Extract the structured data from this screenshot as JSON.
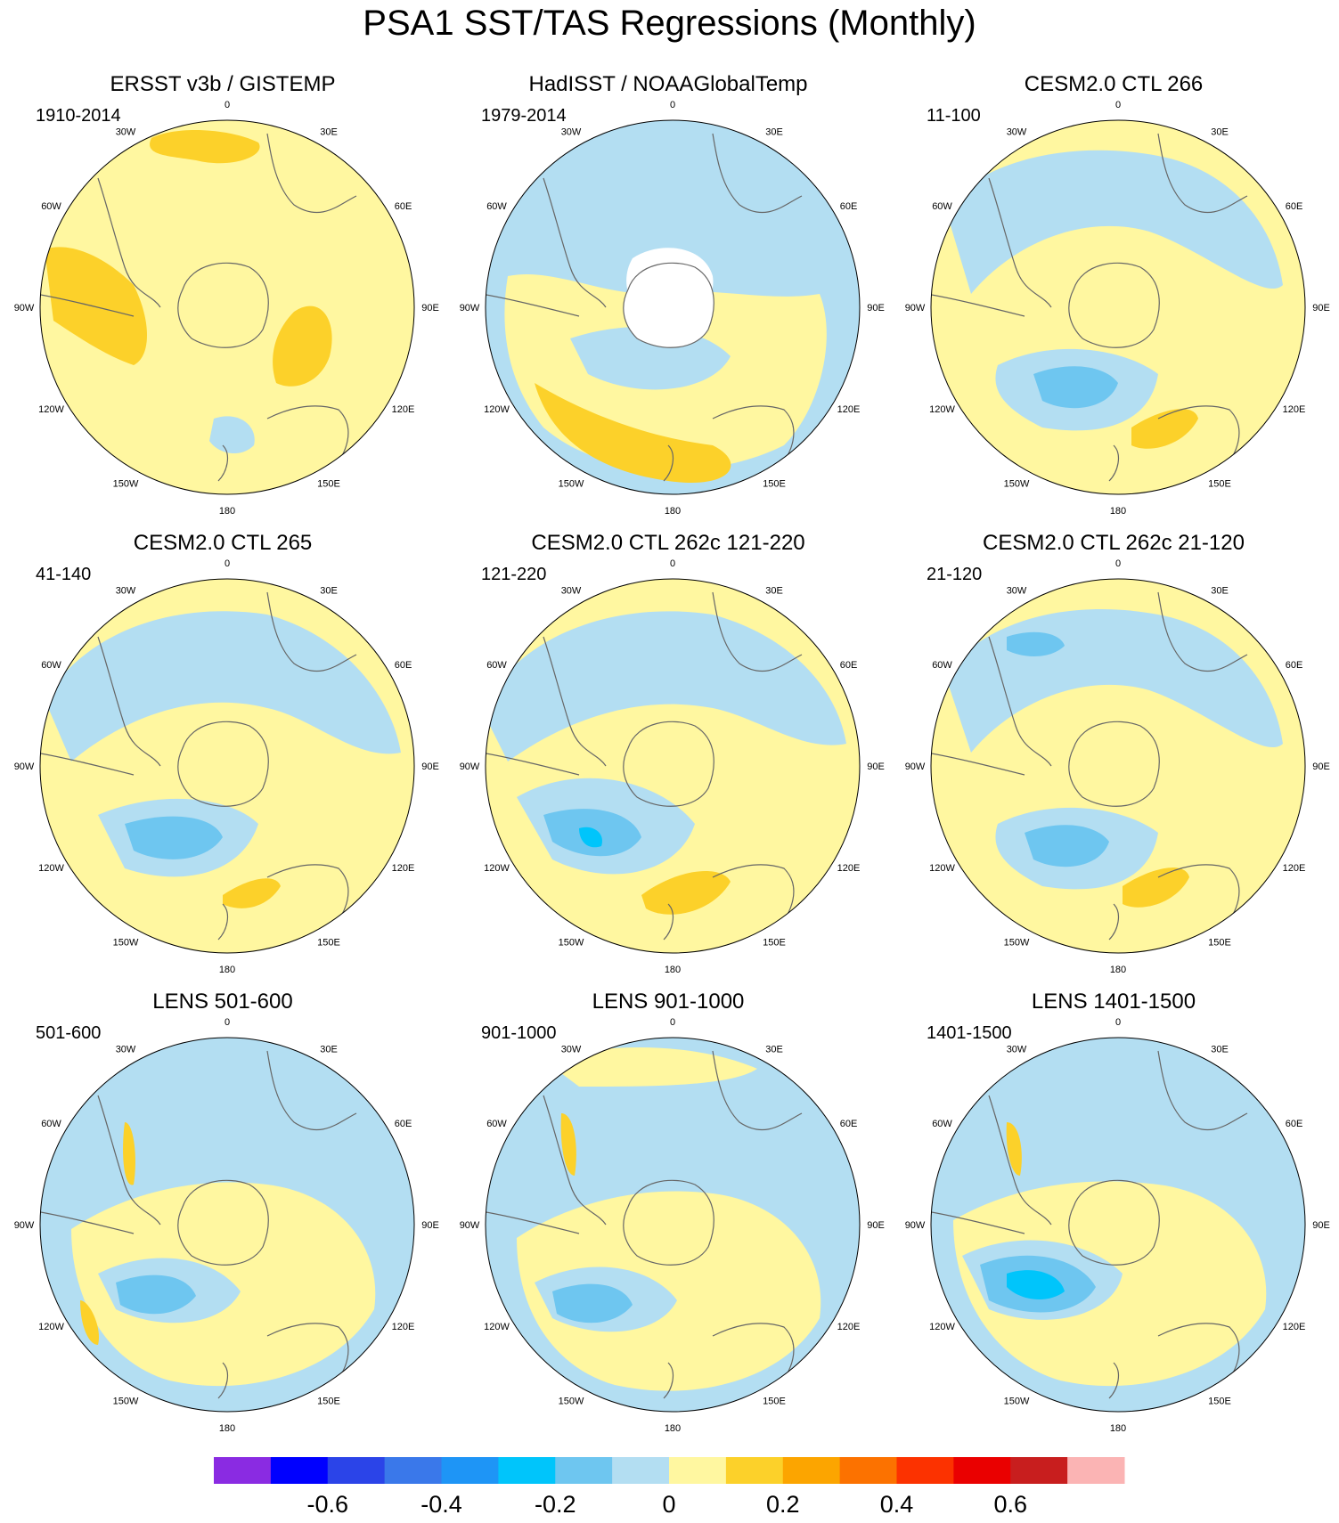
{
  "figure": {
    "title": "PSA1 SST/TAS Regressions (Monthly)"
  },
  "longitude_labels": [
    "0",
    "30E",
    "60E",
    "90E",
    "120E",
    "150E",
    "180",
    "150W",
    "120W",
    "90W",
    "60W",
    "30W"
  ],
  "panels": [
    {
      "title": "ERSST v3b / GISTEMP",
      "period": "1910-2014"
    },
    {
      "title": "HadISST / NOAAGlobalTemp",
      "period": "1979-2014"
    },
    {
      "title": "CESM2.0 CTL 266",
      "period": "11-100"
    },
    {
      "title": "CESM2.0 CTL 265",
      "period": "41-140"
    },
    {
      "title": "CESM2.0 CTL 262c 121-220",
      "period": "121-220"
    },
    {
      "title": "CESM2.0 CTL 262c 21-120",
      "period": "21-120"
    },
    {
      "title": "LENS 501-600",
      "period": "501-600"
    },
    {
      "title": "LENS 901-1000",
      "period": "901-1000"
    },
    {
      "title": "LENS 1401-1500",
      "period": "1401-1500"
    }
  ],
  "colorbar": {
    "colors": [
      "#8a2be2",
      "#0000ff",
      "#2b44e8",
      "#3a78ea",
      "#1e95f6",
      "#00c5fb",
      "#6ec6f0",
      "#b3def2",
      "#fff7a0",
      "#fcd12a",
      "#fca500",
      "#fc7200",
      "#fc3200",
      "#ea0000",
      "#c81e1e",
      "#fbb4b4"
    ],
    "tick_labels": [
      "-0.6",
      "-0.4",
      "-0.2",
      "0",
      "0.2",
      "0.4",
      "0.6"
    ]
  }
}
